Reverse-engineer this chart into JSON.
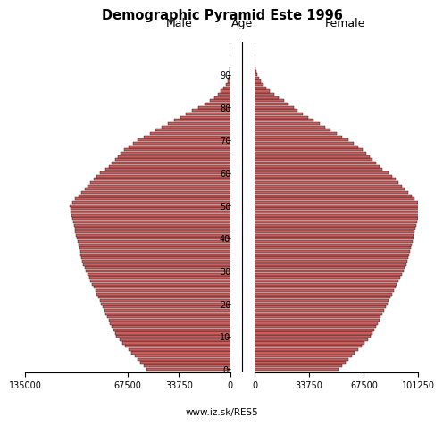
{
  "title": "Demographic Pyramid Este 1996",
  "label_male": "Male",
  "label_female": "Female",
  "label_age": "Age",
  "footer": "www.iz.sk/RES5",
  "bar_color": "#cd5c5c",
  "bar_edge_color": "#111111",
  "male": [
    55000,
    57000,
    59000,
    61000,
    63000,
    65000,
    67000,
    69000,
    71000,
    73000,
    75000,
    76000,
    77000,
    78000,
    79000,
    80000,
    81000,
    82000,
    83000,
    84000,
    85000,
    86000,
    87000,
    88000,
    89000,
    90000,
    91000,
    92000,
    93000,
    94000,
    95000,
    96000,
    97000,
    97500,
    98000,
    98500,
    99000,
    99500,
    100000,
    100500,
    101000,
    101500,
    102000,
    102500,
    103000,
    103500,
    104000,
    104500,
    105000,
    105500,
    106000,
    104000,
    102000,
    100000,
    98000,
    96000,
    94000,
    92000,
    90000,
    88000,
    86000,
    82000,
    80000,
    78000,
    76000,
    74000,
    72000,
    70000,
    67000,
    64000,
    61000,
    57000,
    53000,
    49000,
    45000,
    41000,
    37000,
    33000,
    29000,
    25000,
    21000,
    17000,
    13500,
    10500,
    8000,
    6000,
    4200,
    2800,
    1700,
    900,
    480,
    220,
    100,
    45,
    20,
    8,
    3,
    1,
    0,
    0
  ],
  "female": [
    52000,
    54000,
    56000,
    58000,
    60000,
    62000,
    64000,
    66000,
    68000,
    70000,
    72000,
    73000,
    74000,
    75000,
    76000,
    77000,
    78000,
    79000,
    80000,
    81000,
    82000,
    83000,
    84000,
    85000,
    86000,
    87000,
    88000,
    89000,
    90000,
    91000,
    92000,
    93000,
    94000,
    94500,
    95000,
    95500,
    96000,
    96500,
    97000,
    97500,
    98000,
    98500,
    99000,
    99500,
    100000,
    100500,
    101000,
    101500,
    102000,
    102500,
    103000,
    101000,
    99000,
    97000,
    95000,
    93000,
    91000,
    89000,
    87000,
    85000,
    83000,
    79000,
    77000,
    75000,
    73000,
    71000,
    69000,
    67000,
    64000,
    61000,
    58000,
    54000,
    50500,
    47000,
    43500,
    40000,
    36500,
    33000,
    29500,
    26500,
    24000,
    21000,
    18000,
    15000,
    12000,
    9500,
    7300,
    5500,
    3900,
    2500,
    1500,
    800,
    380,
    170,
    70,
    28,
    10,
    3,
    1,
    0
  ],
  "ages": [
    0,
    1,
    2,
    3,
    4,
    5,
    6,
    7,
    8,
    9,
    10,
    11,
    12,
    13,
    14,
    15,
    16,
    17,
    18,
    19,
    20,
    21,
    22,
    23,
    24,
    25,
    26,
    27,
    28,
    29,
    30,
    31,
    32,
    33,
    34,
    35,
    36,
    37,
    38,
    39,
    40,
    41,
    42,
    43,
    44,
    45,
    46,
    47,
    48,
    49,
    50,
    51,
    52,
    53,
    54,
    55,
    56,
    57,
    58,
    59,
    60,
    61,
    62,
    63,
    64,
    65,
    66,
    67,
    68,
    69,
    70,
    71,
    72,
    73,
    74,
    75,
    76,
    77,
    78,
    79,
    80,
    81,
    82,
    83,
    84,
    85,
    86,
    87,
    88,
    89,
    90,
    91,
    92,
    93,
    94,
    95,
    96,
    97,
    98,
    99
  ],
  "xlim_male": 135000,
  "xlim_female": 101250,
  "xticks_male": [
    135000,
    67500,
    33750,
    0
  ],
  "xtick_labels_male": [
    "135000",
    "67500",
    "33750",
    "0"
  ],
  "xticks_female": [
    0,
    33750,
    67500,
    101250
  ],
  "xtick_labels_female": [
    "0",
    "33750",
    "67500",
    "101250"
  ],
  "ytick_positions": [
    0,
    10,
    20,
    30,
    40,
    50,
    60,
    70,
    80,
    90
  ],
  "bar_height": 0.85,
  "lw": 0.3
}
